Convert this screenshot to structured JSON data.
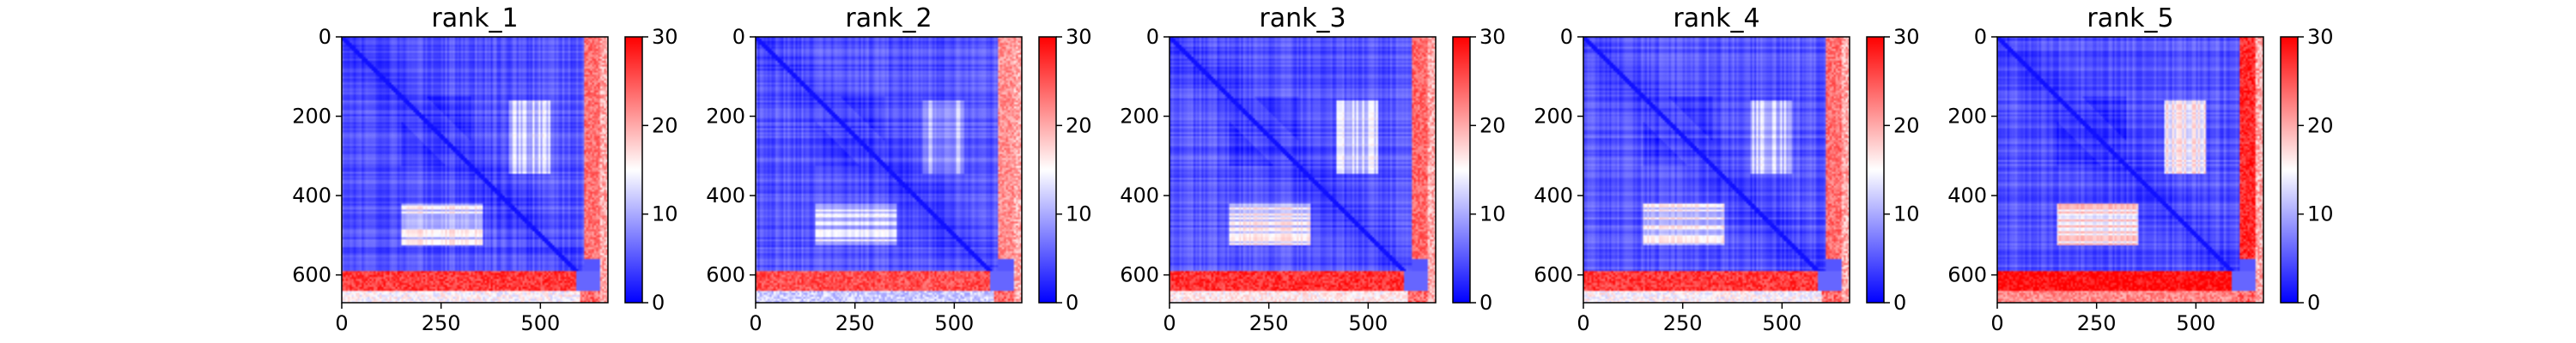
{
  "chart_data": [
    {
      "type": "heatmap",
      "title": "rank_1",
      "xticks": [
        0,
        250,
        500
      ],
      "yticks": [
        0,
        200,
        400,
        600
      ],
      "xlim": [
        0,
        670
      ],
      "ylim": [
        670,
        0
      ],
      "colorbar": {
        "ticks": [
          0,
          10,
          20,
          30
        ],
        "range": [
          0,
          30
        ],
        "colormap": "bwr"
      },
      "description": "predicted aligned error matrix; low (blue) across residues 0-590 with lighter bands near 430-500; high (red, ~25-30) band for rows ~590-640 and columns ~610-650"
    },
    {
      "type": "heatmap",
      "title": "rank_2",
      "xticks": [
        0,
        250,
        500
      ],
      "yticks": [
        0,
        200,
        400,
        600
      ],
      "xlim": [
        0,
        670
      ],
      "ylim": [
        670,
        0
      ],
      "colorbar": {
        "ticks": [
          0,
          10,
          20,
          30
        ],
        "range": [
          0,
          30
        ],
        "colormap": "bwr"
      }
    },
    {
      "type": "heatmap",
      "title": "rank_3",
      "xticks": [
        0,
        250,
        500
      ],
      "yticks": [
        0,
        200,
        400,
        600
      ],
      "xlim": [
        0,
        670
      ],
      "ylim": [
        670,
        0
      ],
      "colorbar": {
        "ticks": [
          0,
          10,
          20,
          30
        ],
        "range": [
          0,
          30
        ],
        "colormap": "bwr"
      }
    },
    {
      "type": "heatmap",
      "title": "rank_4",
      "xticks": [
        0,
        250,
        500
      ],
      "yticks": [
        0,
        200,
        400,
        600
      ],
      "xlim": [
        0,
        670
      ],
      "ylim": [
        670,
        0
      ],
      "colorbar": {
        "ticks": [
          0,
          10,
          20,
          30
        ],
        "range": [
          0,
          30
        ],
        "colormap": "bwr"
      }
    },
    {
      "type": "heatmap",
      "title": "rank_5",
      "xticks": [
        0,
        250,
        500
      ],
      "yticks": [
        0,
        200,
        400,
        600
      ],
      "xlim": [
        0,
        670
      ],
      "ylim": [
        670,
        0
      ],
      "colorbar": {
        "ticks": [
          0,
          10,
          20,
          30
        ],
        "range": [
          0,
          30
        ],
        "colormap": "bwr"
      }
    }
  ],
  "colors": {
    "low": "#0000ff",
    "mid": "#ffffff",
    "high": "#ff0000"
  }
}
